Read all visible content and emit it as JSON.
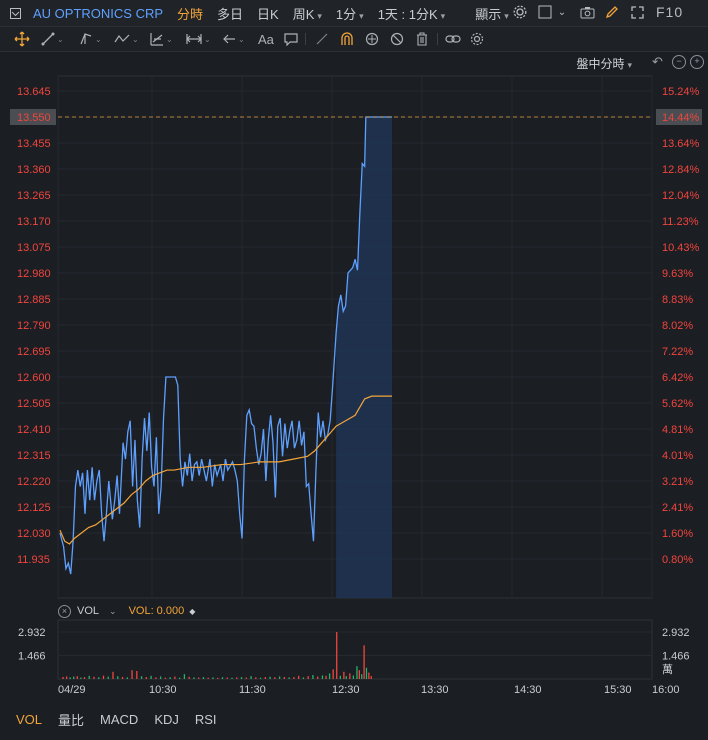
{
  "header": {
    "title": "AU OPTRONICS CRP",
    "timeframes": [
      {
        "label": "分時",
        "active": true
      },
      {
        "label": "多日",
        "active": false
      },
      {
        "label": "日K",
        "active": false
      },
      {
        "label": "周K",
        "active": false
      },
      {
        "label": "1分",
        "active": false
      }
    ],
    "range_label": "1天 : 1分K",
    "display_label": "顯示",
    "f10_label": "F10"
  },
  "chart_mode_label": "盤中分時",
  "volume_panel": {
    "label": "VOL",
    "value_label": "VOL: 0.000"
  },
  "bottom_tabs": [
    "VOL",
    "量比",
    "MACD",
    "KDJ",
    "RSI"
  ],
  "colors": {
    "price_line": "#5ea0ff",
    "avg_line": "#f3a53a",
    "up": "#f2453d",
    "down": "#27b36b",
    "accent": "#f3a53a"
  },
  "chart_data": {
    "type": "line",
    "title": "",
    "price_ticks": [
      "13.645",
      "13.550",
      "13.455",
      "13.360",
      "13.265",
      "13.170",
      "13.075",
      "12.980",
      "12.885",
      "12.790",
      "12.695",
      "12.600",
      "12.505",
      "12.410",
      "12.315",
      "12.220",
      "12.125",
      "12.030",
      "11.935"
    ],
    "pct_ticks": [
      "15.24%",
      "14.44%",
      "13.64%",
      "12.84%",
      "12.04%",
      "11.23%",
      "10.43%",
      "9.63%",
      "8.83%",
      "8.02%",
      "7.22%",
      "6.42%",
      "5.62%",
      "4.81%",
      "4.01%",
      "3.21%",
      "2.41%",
      "1.60%",
      "0.80%"
    ],
    "highlighted_price": "13.550",
    "highlighted_pct": "14.44%",
    "x_ticks": [
      "04/29",
      "10:30",
      "11:30",
      "12:30",
      "13:30",
      "14:30",
      "15:30",
      "16:00"
    ],
    "volume_ticks": [
      "2.932",
      "1.466"
    ],
    "volume_unit": "萬",
    "ylim": [
      11.89,
      13.69
    ],
    "series": [
      {
        "values": [
          [
            0,
            12.03
          ],
          [
            3,
            11.98
          ],
          [
            5,
            11.9
          ],
          [
            7,
            11.92
          ],
          [
            9,
            11.88
          ],
          [
            11,
            12.0
          ],
          [
            13,
            12.2
          ],
          [
            15,
            12.26
          ],
          [
            17,
            12.2
          ],
          [
            19,
            12.25
          ],
          [
            21,
            12.1
          ],
          [
            23,
            12.26
          ],
          [
            25,
            12.15
          ],
          [
            27,
            12.27
          ],
          [
            29,
            12.15
          ],
          [
            31,
            12.22
          ],
          [
            33,
            12.26
          ],
          [
            35,
            12.1
          ],
          [
            37,
            12.0
          ],
          [
            39,
            12.1
          ],
          [
            41,
            12.22
          ],
          [
            44,
            12.08
          ],
          [
            46,
            12.15
          ],
          [
            48,
            12.24
          ],
          [
            50,
            12.1
          ],
          [
            53,
            12.36
          ],
          [
            55,
            12.3
          ],
          [
            57,
            12.4
          ],
          [
            59,
            12.44
          ],
          [
            61,
            12.2
          ],
          [
            63,
            12.37
          ],
          [
            65,
            12.15
          ],
          [
            67,
            12.05
          ],
          [
            69,
            12.3
          ],
          [
            71,
            12.45
          ],
          [
            73,
            12.33
          ],
          [
            75,
            12.47
          ],
          [
            77,
            12.27
          ],
          [
            79,
            12.2
          ],
          [
            81,
            12.38
          ],
          [
            83,
            12.1
          ],
          [
            85,
            12.2
          ],
          [
            87,
            12.45
          ],
          [
            89,
            12.6
          ],
          [
            93,
            12.6
          ],
          [
            97,
            12.6
          ],
          [
            99,
            12.57
          ],
          [
            101,
            12.3
          ],
          [
            103,
            12.2
          ],
          [
            105,
            12.29
          ],
          [
            107,
            12.24
          ],
          [
            109,
            12.32
          ],
          [
            111,
            12.22
          ],
          [
            113,
            12.28
          ],
          [
            115,
            12.29
          ],
          [
            117,
            12.24
          ],
          [
            119,
            12.3
          ],
          [
            121,
            12.26
          ],
          [
            123,
            12.22
          ],
          [
            126,
            12.3
          ],
          [
            128,
            12.2
          ],
          [
            130,
            12.28
          ],
          [
            132,
            12.24
          ],
          [
            135,
            12.28
          ],
          [
            137,
            12.22
          ],
          [
            139,
            12.3
          ],
          [
            141,
            12.26
          ],
          [
            145,
            12.29
          ],
          [
            147,
            12.26
          ],
          [
            149,
            12.22
          ],
          [
            151,
            12.1
          ],
          [
            153,
            12.01
          ],
          [
            155,
            12.3
          ],
          [
            157,
            12.46
          ],
          [
            159,
            12.48
          ],
          [
            161,
            12.43
          ],
          [
            163,
            12.42
          ],
          [
            165,
            12.34
          ],
          [
            167,
            12.28
          ],
          [
            169,
            12.32
          ],
          [
            171,
            12.41
          ],
          [
            173,
            12.22
          ],
          [
            175,
            12.37
          ],
          [
            177,
            12.46
          ],
          [
            179,
            12.36
          ],
          [
            181,
            12.16
          ],
          [
            183,
            12.42
          ],
          [
            185,
            12.45
          ],
          [
            187,
            12.31
          ],
          [
            189,
            12.43
          ],
          [
            191,
            12.34
          ],
          [
            193,
            12.4
          ],
          [
            195,
            12.44
          ],
          [
            197,
            12.34
          ],
          [
            199,
            12.37
          ],
          [
            201,
            12.44
          ],
          [
            203,
            12.35
          ],
          [
            205,
            12.4
          ],
          [
            207,
            12.2
          ],
          [
            209,
            12.21
          ],
          [
            211,
            12.1
          ],
          [
            213,
            12.0
          ],
          [
            215,
            12.25
          ],
          [
            217,
            12.47
          ],
          [
            219,
            12.38
          ],
          [
            221,
            12.44
          ],
          [
            223,
            12.37
          ],
          [
            225,
            12.39
          ],
          [
            227,
            12.44
          ],
          [
            229,
            12.56
          ],
          [
            232,
            12.76
          ],
          [
            234,
            12.86
          ],
          [
            236,
            12.9
          ],
          [
            238,
            12.84
          ],
          [
            240,
            12.86
          ],
          [
            242,
            12.98
          ],
          [
            244,
            12.99
          ],
          [
            246,
            13.0
          ],
          [
            248,
            13.03
          ],
          [
            250,
            12.99
          ],
          [
            252,
            13.2
          ],
          [
            254,
            13.38
          ],
          [
            256,
            13.37
          ],
          [
            257,
            13.55
          ],
          [
            259,
            13.55
          ],
          [
            265,
            13.55
          ],
          [
            279,
            13.55
          ]
        ]
      },
      {
        "values": [
          [
            0,
            12.04
          ],
          [
            4,
            12.0
          ],
          [
            8,
            11.99
          ],
          [
            12,
            12.01
          ],
          [
            18,
            12.03
          ],
          [
            24,
            12.05
          ],
          [
            30,
            12.06
          ],
          [
            36,
            12.08
          ],
          [
            42,
            12.1
          ],
          [
            48,
            12.12
          ],
          [
            54,
            12.14
          ],
          [
            60,
            12.17
          ],
          [
            66,
            12.19
          ],
          [
            72,
            12.22
          ],
          [
            78,
            12.24
          ],
          [
            84,
            12.25
          ],
          [
            90,
            12.26
          ],
          [
            96,
            12.26
          ],
          [
            108,
            12.27
          ],
          [
            120,
            12.27
          ],
          [
            136,
            12.28
          ],
          [
            152,
            12.28
          ],
          [
            168,
            12.29
          ],
          [
            184,
            12.29
          ],
          [
            196,
            12.3
          ],
          [
            208,
            12.31
          ],
          [
            214,
            12.33
          ],
          [
            220,
            12.36
          ],
          [
            226,
            12.39
          ],
          [
            232,
            12.42
          ],
          [
            240,
            12.44
          ],
          [
            248,
            12.46
          ],
          [
            256,
            12.52
          ],
          [
            262,
            12.53
          ],
          [
            270,
            12.53
          ],
          [
            279,
            12.53
          ]
        ]
      }
    ],
    "volume": [
      [
        2,
        0.13,
        "up"
      ],
      [
        5,
        0.16,
        "up"
      ],
      [
        8,
        0.1,
        "down"
      ],
      [
        11,
        0.15,
        "down"
      ],
      [
        14,
        0.18,
        "up"
      ],
      [
        17,
        0.09,
        "down"
      ],
      [
        20,
        0.12,
        "up"
      ],
      [
        24,
        0.2,
        "down"
      ],
      [
        28,
        0.14,
        "up"
      ],
      [
        32,
        0.11,
        "down"
      ],
      [
        36,
        0.21,
        "up"
      ],
      [
        40,
        0.15,
        "down"
      ],
      [
        44,
        0.45,
        "up"
      ],
      [
        48,
        0.17,
        "down"
      ],
      [
        52,
        0.13,
        "up"
      ],
      [
        56,
        0.1,
        "down"
      ],
      [
        60,
        0.55,
        "up"
      ],
      [
        64,
        0.5,
        "up"
      ],
      [
        68,
        0.17,
        "down"
      ],
      [
        72,
        0.12,
        "up"
      ],
      [
        76,
        0.2,
        "down"
      ],
      [
        80,
        0.1,
        "up"
      ],
      [
        84,
        0.16,
        "down"
      ],
      [
        88,
        0.08,
        "up"
      ],
      [
        92,
        0.11,
        "down"
      ],
      [
        96,
        0.15,
        "up"
      ],
      [
        100,
        0.08,
        "down"
      ],
      [
        104,
        0.3,
        "down"
      ],
      [
        108,
        0.14,
        "up"
      ],
      [
        112,
        0.1,
        "down"
      ],
      [
        116,
        0.09,
        "up"
      ],
      [
        120,
        0.12,
        "down"
      ],
      [
        124,
        0.08,
        "up"
      ],
      [
        128,
        0.1,
        "down"
      ],
      [
        132,
        0.07,
        "up"
      ],
      [
        136,
        0.11,
        "down"
      ],
      [
        140,
        0.09,
        "up"
      ],
      [
        144,
        0.08,
        "down"
      ],
      [
        148,
        0.1,
        "up"
      ],
      [
        152,
        0.12,
        "down"
      ],
      [
        156,
        0.09,
        "up"
      ],
      [
        160,
        0.18,
        "down"
      ],
      [
        164,
        0.1,
        "up"
      ],
      [
        168,
        0.08,
        "down"
      ],
      [
        172,
        0.12,
        "up"
      ],
      [
        176,
        0.14,
        "down"
      ],
      [
        180,
        0.11,
        "up"
      ],
      [
        184,
        0.16,
        "down"
      ],
      [
        188,
        0.13,
        "up"
      ],
      [
        192,
        0.1,
        "down"
      ],
      [
        196,
        0.12,
        "up"
      ],
      [
        200,
        0.2,
        "up"
      ],
      [
        204,
        0.1,
        "down"
      ],
      [
        208,
        0.18,
        "up"
      ],
      [
        212,
        0.25,
        "down"
      ],
      [
        216,
        0.15,
        "up"
      ],
      [
        220,
        0.22,
        "down"
      ],
      [
        223,
        0.2,
        "up"
      ],
      [
        226,
        0.35,
        "down"
      ],
      [
        229,
        0.6,
        "up"
      ],
      [
        232,
        2.93,
        "up"
      ],
      [
        235,
        0.2,
        "down"
      ],
      [
        238,
        0.45,
        "up"
      ],
      [
        240,
        0.18,
        "down"
      ],
      [
        243,
        0.35,
        "up"
      ],
      [
        246,
        0.22,
        "down"
      ],
      [
        249,
        0.8,
        "down"
      ],
      [
        251,
        0.55,
        "up"
      ],
      [
        253,
        0.3,
        "down"
      ],
      [
        255,
        2.1,
        "up"
      ],
      [
        257,
        0.7,
        "down"
      ],
      [
        259,
        0.4,
        "up"
      ],
      [
        261,
        0.18,
        "up"
      ]
    ]
  }
}
